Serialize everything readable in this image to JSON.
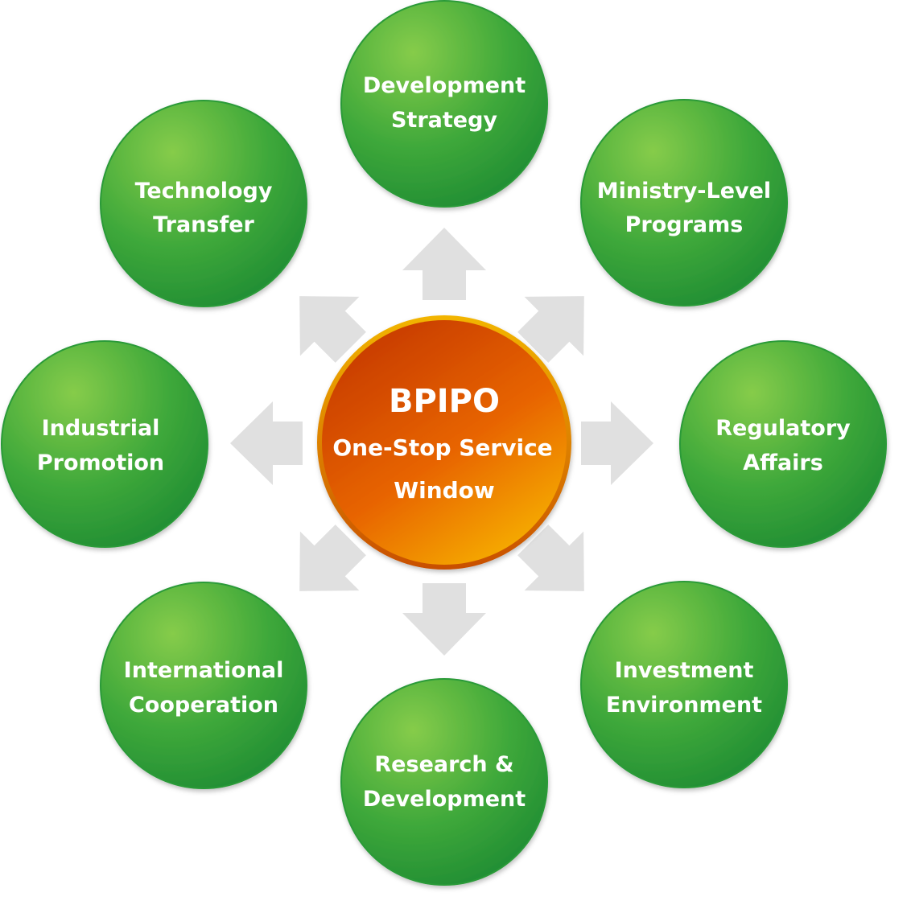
{
  "hub": {
    "title": "BPIPO",
    "line1": "One-Stop Service",
    "line2": "Window"
  },
  "nodes": [
    {
      "line1": "Development",
      "line2": "Strategy"
    },
    {
      "line1": "Ministry-Level",
      "line2": "Programs"
    },
    {
      "line1": "Regulatory",
      "line2": "Affairs"
    },
    {
      "line1": "Investment",
      "line2": "Environment"
    },
    {
      "line1": "Research &",
      "line2": "Development"
    },
    {
      "line1": "International",
      "line2": "Cooperation"
    },
    {
      "line1": "Industrial",
      "line2": "Promotion"
    },
    {
      "line1": "Technology",
      "line2": "Transfer"
    }
  ],
  "colors": {
    "node_light": "#7cc444",
    "node_dark": "#1f8f35",
    "hub_light": "#f7a800",
    "hub_dark": "#c73a00",
    "arrow": "#e0e0e0"
  }
}
